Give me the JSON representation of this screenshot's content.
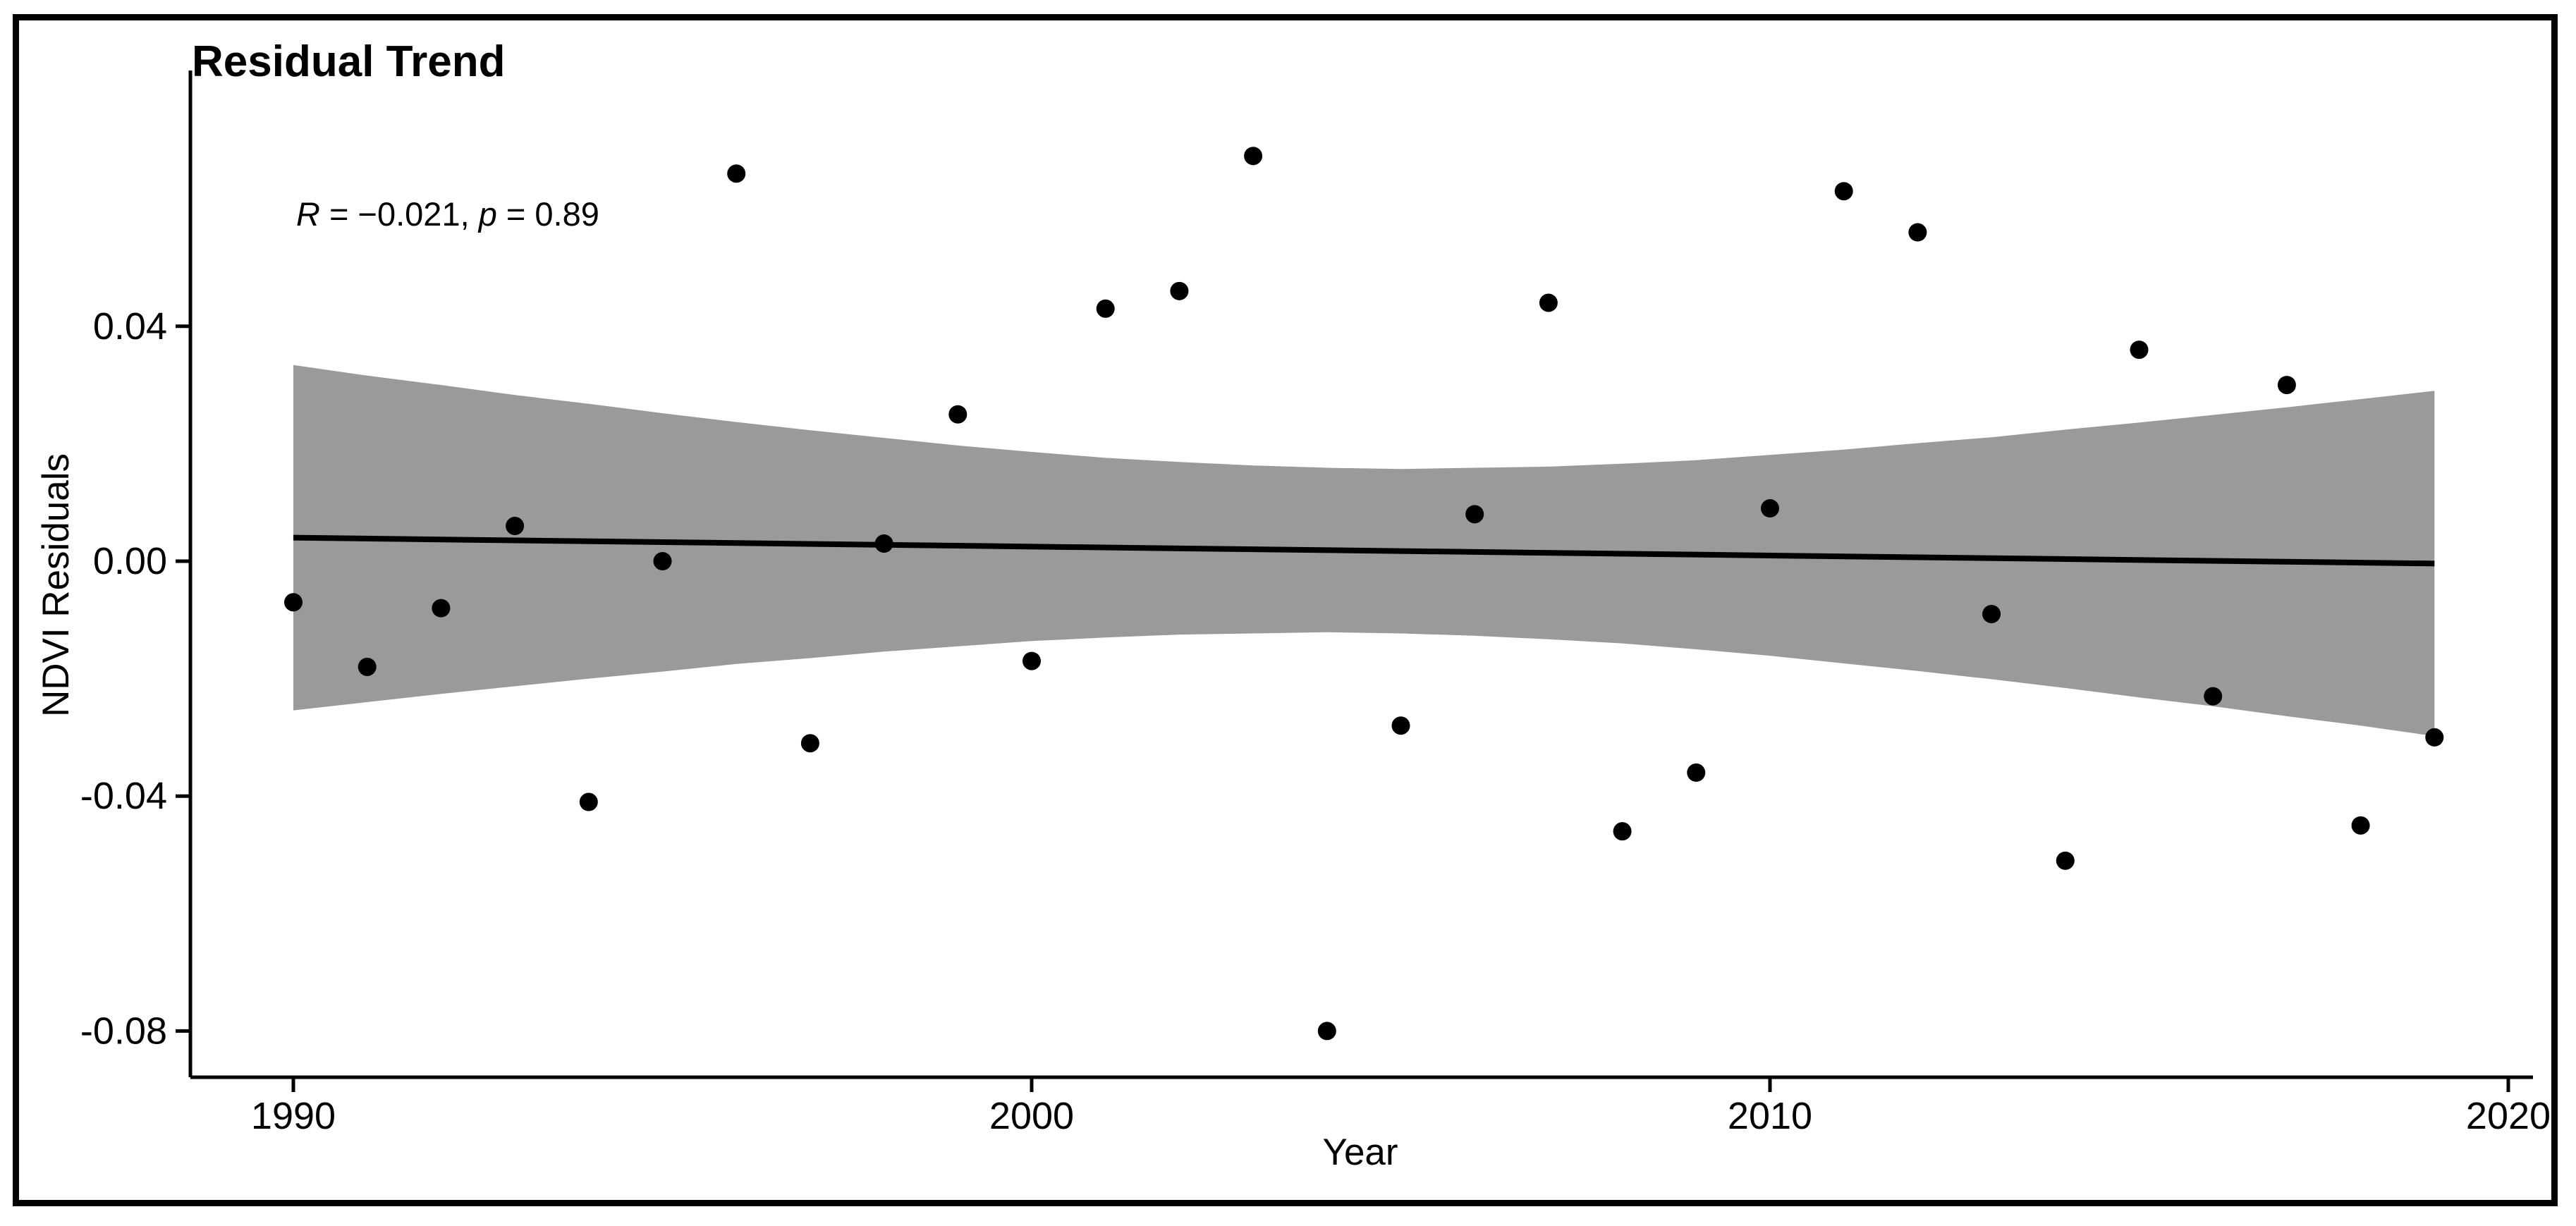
{
  "figure": {
    "title": "Residual Trend",
    "xlabel": "Year",
    "ylabel": "NDVI Residuals"
  },
  "chart_data": {
    "type": "scatter",
    "title": "Residual Trend",
    "xlabel": "Year",
    "ylabel": "NDVI Residuals",
    "annotation_text": "R = −0.021, p = 0.89",
    "annotation_parts": [
      {
        "text": "R",
        "italic": true
      },
      {
        "text": " = −0.021, ",
        "italic": false
      },
      {
        "text": "p",
        "italic": true
      },
      {
        "text": " = 0.89",
        "italic": false
      }
    ],
    "xlim": [
      1988.6,
      2020.35
    ],
    "ylim": [
      -0.0878,
      0.0852
    ],
    "grid": false,
    "legend": "none",
    "x_ticks": [
      {
        "value": 1990,
        "label": "1990"
      },
      {
        "value": 2000,
        "label": "2000"
      },
      {
        "value": 2010,
        "label": "2010"
      },
      {
        "value": 2020,
        "label": "2020"
      }
    ],
    "y_ticks": [
      {
        "value": 0.04,
        "label": "0.04"
      },
      {
        "value": 0.0,
        "label": "0.00"
      },
      {
        "value": -0.04,
        "label": "-0.04"
      },
      {
        "value": -0.08,
        "label": "-0.08"
      }
    ],
    "colors": {
      "point": "#000000",
      "trend_line": "#000000",
      "confidence_band": "#9a9a9a",
      "axis": "#000000",
      "frame": "#000000",
      "background": "#ffffff"
    },
    "series": [
      {
        "name": "NDVI residuals",
        "x": [
          1990,
          1991,
          1992,
          1993,
          1994,
          1995,
          1996,
          1997,
          1998,
          1999,
          2000,
          2001,
          2002,
          2003,
          2004,
          2005,
          2006,
          2007,
          2008,
          2009,
          2010,
          2011,
          2012,
          2013,
          2014,
          2015,
          2016,
          2017,
          2018,
          2019
        ],
        "y": [
          -0.007,
          -0.018,
          -0.008,
          0.006,
          -0.041,
          0.0,
          0.066,
          -0.031,
          0.003,
          0.025,
          -0.017,
          0.043,
          0.046,
          0.069,
          -0.08,
          -0.028,
          0.008,
          0.044,
          -0.046,
          -0.036,
          0.009,
          0.063,
          0.056,
          -0.009,
          -0.051,
          0.036,
          -0.023,
          0.03,
          -0.045,
          -0.03
        ]
      }
    ],
    "trend": {
      "x": [
        1990,
        2019
      ],
      "y": [
        0.004,
        -0.0004
      ]
    },
    "ci_band": {
      "x": [
        1990,
        1991,
        1992,
        1993,
        1994,
        1995,
        1996,
        1997,
        1998,
        1999,
        2000,
        2001,
        2002,
        2003,
        2004,
        2005,
        2006,
        2007,
        2008,
        2009,
        2010,
        2011,
        2012,
        2013,
        2014,
        2015,
        2016,
        2017,
        2018,
        2019
      ],
      "upper": [
        0.0334,
        0.0316,
        0.03,
        0.0283,
        0.0268,
        0.0252,
        0.0237,
        0.0223,
        0.021,
        0.0197,
        0.0186,
        0.0176,
        0.0169,
        0.0163,
        0.0159,
        0.0157,
        0.0159,
        0.0161,
        0.0166,
        0.0172,
        0.0181,
        0.019,
        0.0201,
        0.0211,
        0.0224,
        0.0236,
        0.0249,
        0.0262,
        0.0276,
        0.029
      ],
      "lower": [
        -0.0254,
        -0.024,
        -0.0226,
        -0.0213,
        -0.02,
        -0.0188,
        -0.0175,
        -0.0165,
        -0.0154,
        -0.0145,
        -0.0136,
        -0.013,
        -0.0125,
        -0.0123,
        -0.0121,
        -0.0123,
        -0.0127,
        -0.0133,
        -0.014,
        -0.015,
        -0.0161,
        -0.0174,
        -0.0187,
        -0.0201,
        -0.0216,
        -0.0232,
        -0.0247,
        -0.0264,
        -0.028,
        -0.0298
      ]
    }
  }
}
